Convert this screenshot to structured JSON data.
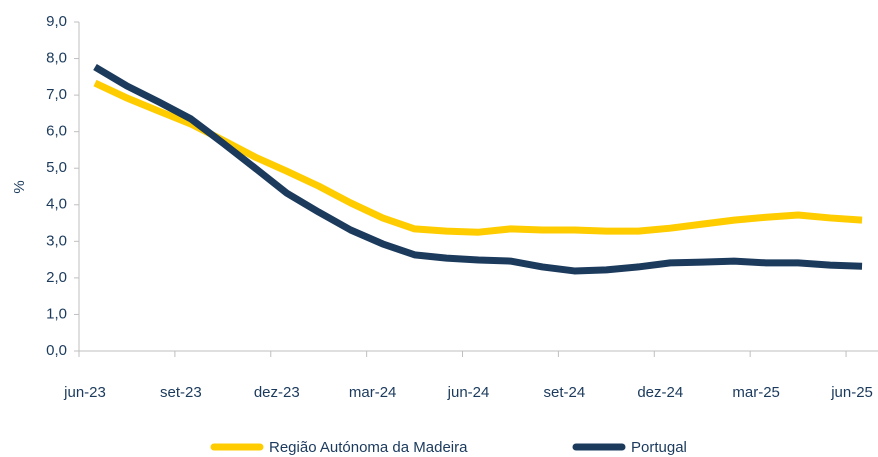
{
  "chart_data": {
    "type": "line",
    "y_label": "%",
    "categories": [
      "jun-23",
      null,
      null,
      "set-23",
      null,
      null,
      "dez-23",
      null,
      null,
      "mar-24",
      null,
      null,
      "jun-24",
      null,
      null,
      "set-24",
      null,
      null,
      "dez-24",
      null,
      null,
      "mar-25",
      null,
      null,
      "jun-25"
    ],
    "series": [
      {
        "name": "Região Autónoma da Madeira",
        "color": "#ffcc00",
        "values": [
          7.33,
          6.92,
          6.56,
          6.21,
          5.77,
          5.31,
          4.92,
          4.51,
          4.05,
          3.64,
          3.34,
          3.28,
          3.25,
          3.34,
          3.31,
          3.31,
          3.28,
          3.28,
          3.36,
          3.47,
          3.58,
          3.66,
          3.72,
          3.64,
          3.58
        ]
      },
      {
        "name": "Portugal",
        "color": "#1b3a5c",
        "values": [
          7.77,
          7.25,
          6.81,
          6.35,
          5.69,
          5.01,
          4.32,
          3.8,
          3.31,
          2.93,
          2.63,
          2.54,
          2.49,
          2.46,
          2.3,
          2.19,
          2.22,
          2.3,
          2.41,
          2.43,
          2.46,
          2.41,
          2.41,
          2.35,
          2.32
        ]
      }
    ],
    "ylim": [
      0,
      9
    ],
    "yticks": [
      {
        "value": 0,
        "label": "0,0"
      },
      {
        "value": 1,
        "label": "1,0"
      },
      {
        "value": 2,
        "label": "2,0"
      },
      {
        "value": 3,
        "label": "3,0"
      },
      {
        "value": 4,
        "label": "4,0"
      },
      {
        "value": 5,
        "label": "5,0"
      },
      {
        "value": 6,
        "label": "6,0"
      },
      {
        "value": 7,
        "label": "7,0"
      },
      {
        "value": 8,
        "label": "8,0"
      },
      {
        "value": 9,
        "label": "9,0"
      }
    ],
    "grid": false,
    "legend": "bottom"
  }
}
